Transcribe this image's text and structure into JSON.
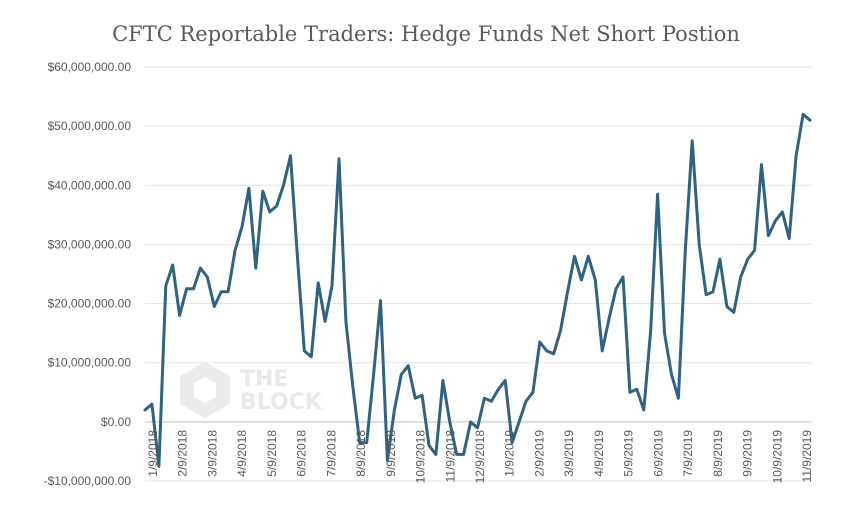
{
  "chart_data": {
    "type": "line",
    "title": "CFTC Reportable Traders: Hedge Funds Net Short Postion",
    "xlabel": "",
    "ylabel": "",
    "ylim": [
      -10000000,
      60000000
    ],
    "yticks": [
      -10000000,
      0,
      10000000,
      20000000,
      30000000,
      40000000,
      50000000,
      60000000
    ],
    "ytick_labels": [
      "-$10,000,000.00",
      "$0.00",
      "$10,000,000.00",
      "$20,000,000.00",
      "$30,000,000.00",
      "$40,000,000.00",
      "$50,000,000.00",
      "$60,000,000.00"
    ],
    "xtick_labels": [
      "1/9/2018",
      "2/9/2018",
      "3/9/2018",
      "4/9/2018",
      "5/9/2018",
      "6/9/2018",
      "7/9/2018",
      "8/9/2018",
      "9/9/2018",
      "10/9/2018",
      "11/9/2018",
      "12/9/2018",
      "1/9/2019",
      "2/9/2019",
      "3/9/2019",
      "4/9/2019",
      "5/9/2019",
      "6/9/2019",
      "7/9/2019",
      "8/9/2019",
      "9/9/2019",
      "10/9/2019",
      "11/9/2019"
    ],
    "grid": true,
    "series": [
      {
        "color": "#2e6384",
        "values": [
          2000000,
          3000000,
          -7500000,
          23000000,
          26500000,
          18000000,
          22500000,
          22500000,
          26000000,
          24500000,
          19500000,
          22000000,
          22000000,
          29000000,
          33000000,
          39500000,
          26000000,
          39000000,
          35500000,
          36500000,
          40000000,
          45000000,
          28000000,
          12000000,
          11000000,
          23500000,
          17000000,
          23000000,
          44500000,
          17000000,
          6000000,
          -3500000,
          -3500000,
          8000000,
          20500000,
          -6500000,
          2000000,
          8000000,
          9500000,
          4000000,
          4500000,
          -4000000,
          -5500000,
          7000000,
          0,
          -5500000,
          -5500000,
          0,
          -1000000,
          4000000,
          3500000,
          5500000,
          7000000,
          -3500000,
          0,
          3500000,
          5000000,
          13500000,
          12000000,
          11500000,
          15500000,
          22000000,
          28000000,
          24000000,
          28000000,
          24000000,
          12000000,
          17500000,
          22500000,
          24500000,
          5000000,
          5500000,
          2000000,
          15500000,
          38500000,
          15000000,
          8000000,
          4000000,
          29000000,
          47500000,
          30000000,
          21500000,
          22000000,
          27500000,
          19500000,
          18500000,
          24500000,
          27500000,
          29000000,
          43500000,
          31500000,
          34000000,
          35500000,
          31000000,
          45000000,
          52000000,
          51000000
        ]
      }
    ]
  },
  "watermark": {
    "line1": "THE",
    "line2": "BLOCK"
  }
}
